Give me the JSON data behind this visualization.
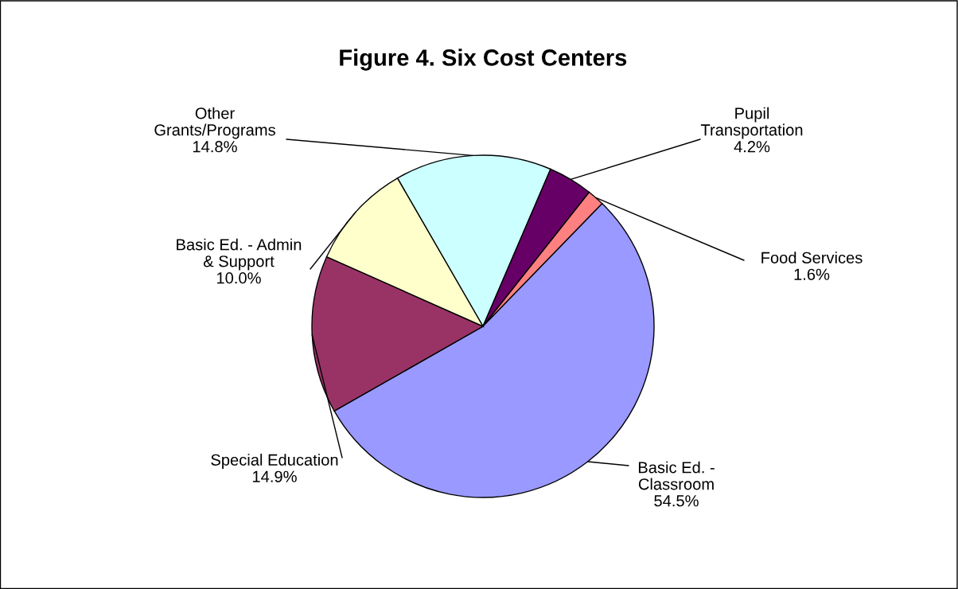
{
  "chart_data": {
    "type": "pie",
    "title": "Figure 4. Six Cost Centers",
    "categories": [
      "Other\nGrants/Programs",
      "Pupil\nTransportation",
      "Food Services",
      "Basic Ed. -\nClassroom",
      "Special Education",
      "Basic Ed. - Admin\n& Support"
    ],
    "values": [
      14.8,
      4.2,
      1.6,
      54.5,
      14.9,
      10.0
    ],
    "value_labels": [
      "14.8%",
      "4.2%",
      "1.6%",
      "54.5%",
      "14.9%",
      "10.0%"
    ],
    "colors": [
      "#ccffff",
      "#660066",
      "#ff8080",
      "#9999ff",
      "#993366",
      "#ffffcc"
    ],
    "legend": false
  }
}
